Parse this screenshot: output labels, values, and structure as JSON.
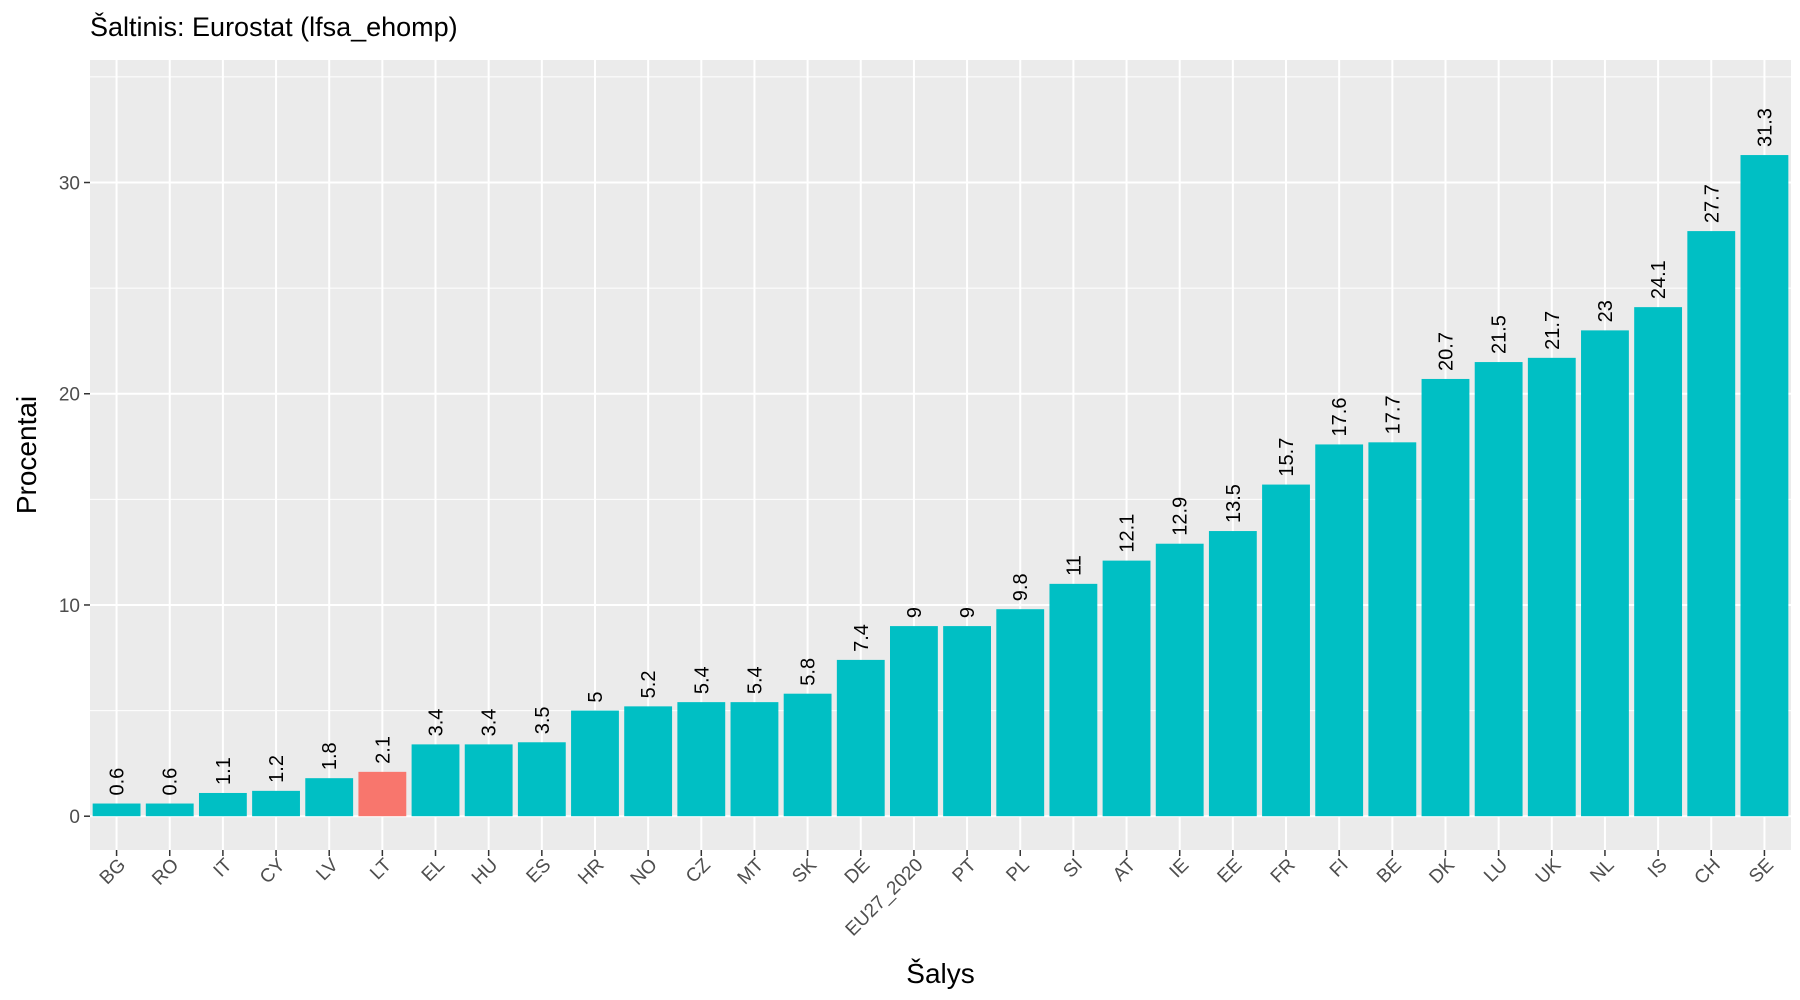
{
  "chart_data": {
    "type": "bar",
    "title": "Šaltinis: Eurostat (lfsa_ehomp)",
    "xlabel": "Šalys",
    "ylabel": "Procentai",
    "ylim": [
      -1.6,
      35.8
    ],
    "yticks": [
      0,
      10,
      20,
      30
    ],
    "grid": true,
    "legend": "none",
    "colors": {
      "default": "#00BFC4",
      "highlight": "#F8766D",
      "panel": "#EBEBEB",
      "grid": "#FFFFFF"
    },
    "categories": [
      "BG",
      "RO",
      "IT",
      "CY",
      "LV",
      "LT",
      "EL",
      "HU",
      "ES",
      "HR",
      "NO",
      "CZ",
      "MT",
      "SK",
      "DE",
      "EU27_2020",
      "PT",
      "PL",
      "SI",
      "AT",
      "IE",
      "EE",
      "FR",
      "FI",
      "BE",
      "DK",
      "LU",
      "UK",
      "NL",
      "IS",
      "CH",
      "SE"
    ],
    "values": [
      0.6,
      0.6,
      1.1,
      1.2,
      1.8,
      2.1,
      3.4,
      3.4,
      3.5,
      5,
      5.2,
      5.4,
      5.4,
      5.8,
      7.4,
      9,
      9,
      9.8,
      11,
      12.1,
      12.9,
      13.5,
      15.7,
      17.6,
      17.7,
      20.7,
      21.5,
      21.7,
      23,
      24.1,
      27.7,
      31.3
    ],
    "labels": [
      "0.6",
      "0.6",
      "1.1",
      "1.2",
      "1.8",
      "2.1",
      "3.4",
      "3.4",
      "3.5",
      "5",
      "5.2",
      "5.4",
      "5.4",
      "5.8",
      "7.4",
      "9",
      "9",
      "9.8",
      "11",
      "12.1",
      "12.9",
      "13.5",
      "15.7",
      "17.6",
      "17.7",
      "20.7",
      "21.5",
      "21.7",
      "23",
      "24.1",
      "27.7",
      "31.3"
    ],
    "highlight": [
      "LT"
    ]
  }
}
